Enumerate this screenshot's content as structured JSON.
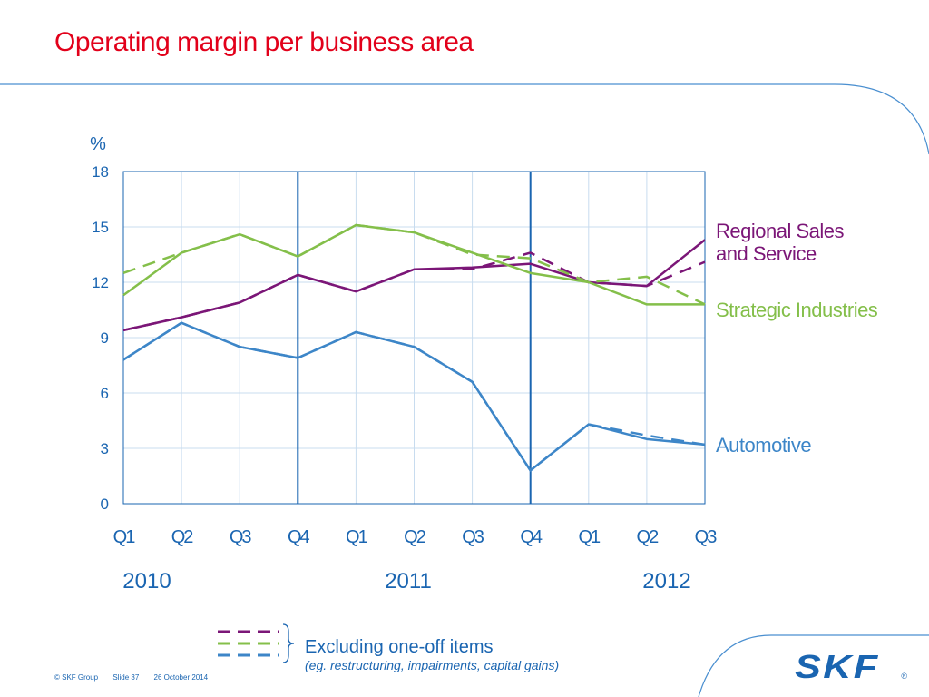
{
  "page": {
    "title": "Operating margin per business area",
    "footer": {
      "copyright": "© SKF Group",
      "slide": "Slide 37",
      "date": "26 October 2014"
    },
    "logo_text": "SKF",
    "logo_mark": "®",
    "note": {
      "main": "Excluding one-off items",
      "sub": "(eg. restructuring, impairments, capital gains)"
    },
    "colors": {
      "title": "#e2001a",
      "automotive": "#3d86c8",
      "strategic": "#84bf4a",
      "regional": "#7b1677",
      "axis": "#1a65b1",
      "grid": "#c8dcef"
    }
  },
  "chart_data": {
    "type": "line",
    "title": "",
    "ylabel": "%",
    "ylim": [
      0,
      18
    ],
    "yticks": [
      0,
      3,
      6,
      9,
      12,
      15,
      18
    ],
    "categories": [
      "Q1",
      "Q2",
      "Q3",
      "Q4",
      "Q1",
      "Q2",
      "Q3",
      "Q4",
      "Q1",
      "Q2",
      "Q3"
    ],
    "years": [
      {
        "label": "2010",
        "start": 0
      },
      {
        "label": "2011",
        "start": 4
      },
      {
        "label": "2012",
        "start": 8
      }
    ],
    "year_separators_after": [
      3,
      7
    ],
    "grid": true,
    "series": [
      {
        "name": "Regional Sales and Service",
        "label_lines": [
          "Regional Sales",
          "and Service"
        ],
        "color_key": "regional",
        "values": [
          9.4,
          10.1,
          10.9,
          12.4,
          11.5,
          12.7,
          12.8,
          13.0,
          12.0,
          11.8,
          14.3
        ],
        "excl_values": [
          9.4,
          10.1,
          10.9,
          12.4,
          11.5,
          12.7,
          12.7,
          13.6,
          12.0,
          11.8,
          13.1
        ]
      },
      {
        "name": "Strategic Industries",
        "label_lines": [
          "Strategic Industries"
        ],
        "color_key": "strategic",
        "values": [
          11.3,
          13.6,
          14.6,
          13.4,
          15.1,
          14.7,
          13.6,
          12.5,
          12.0,
          10.8,
          10.8
        ],
        "excl_values": [
          12.5,
          13.6,
          14.6,
          13.4,
          15.1,
          14.7,
          13.5,
          13.3,
          12.0,
          12.3,
          10.8
        ]
      },
      {
        "name": "Automotive",
        "label_lines": [
          "Automotive"
        ],
        "color_key": "automotive",
        "values": [
          7.8,
          9.8,
          8.5,
          7.9,
          9.3,
          8.5,
          6.6,
          1.8,
          4.3,
          3.5,
          3.2
        ],
        "excl_values": [
          7.8,
          9.8,
          8.5,
          7.9,
          9.3,
          8.5,
          6.6,
          1.8,
          4.3,
          3.7,
          3.2
        ]
      }
    ]
  }
}
